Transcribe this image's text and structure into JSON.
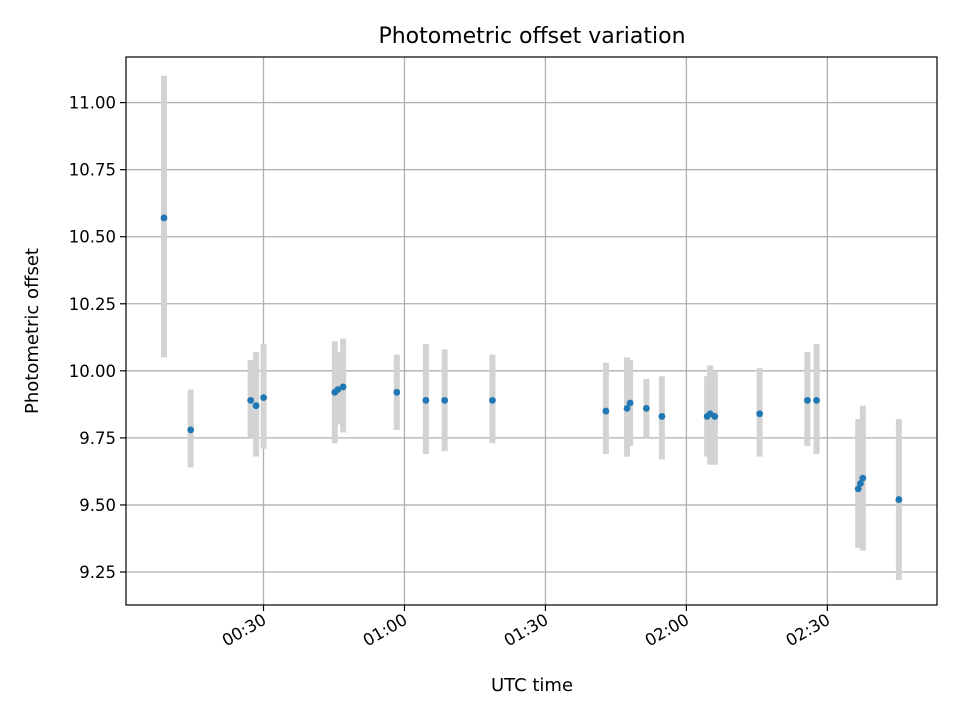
{
  "chart_data": {
    "type": "scatter",
    "title": "Photometric offset variation",
    "xlabel": "UTC time",
    "ylabel": "Photometric offset",
    "xlim": [
      "00:00:44",
      "02:53:20"
    ],
    "ylim": [
      9.127,
      11.17
    ],
    "grid": true,
    "legend": "none",
    "x_ticks": [
      {
        "value": "00:30",
        "label": "00:30"
      },
      {
        "value": "01:00",
        "label": "01:00"
      },
      {
        "value": "01:30",
        "label": "01:30"
      },
      {
        "value": "02:00",
        "label": "02:00"
      },
      {
        "value": "02:30",
        "label": "02:30"
      }
    ],
    "y_ticks": [
      {
        "value": 9.25,
        "label": "9.25"
      },
      {
        "value": 9.5,
        "label": "9.50"
      },
      {
        "value": 9.75,
        "label": "9.75"
      },
      {
        "value": 10.0,
        "label": "10.00"
      },
      {
        "value": 10.25,
        "label": "10.25"
      },
      {
        "value": 10.5,
        "label": "10.50"
      },
      {
        "value": 10.75,
        "label": "10.75"
      },
      {
        "value": 11.0,
        "label": "11.00"
      }
    ],
    "colors": {
      "point": "#1f77b4",
      "errorbar": "#d3d3d3",
      "grid": "#b0b0b0"
    },
    "series": [
      {
        "points": [
          {
            "x": "00:08:49",
            "y": 10.57,
            "ylo": 10.05,
            "yhi": 11.1
          },
          {
            "x": "00:14:30",
            "y": 9.78,
            "ylo": 9.64,
            "yhi": 9.93
          },
          {
            "x": "00:27:16",
            "y": 9.89,
            "ylo": 9.75,
            "yhi": 10.04
          },
          {
            "x": "00:28:25",
            "y": 9.87,
            "ylo": 9.68,
            "yhi": 10.07
          },
          {
            "x": "00:30:01",
            "y": 9.9,
            "ylo": 9.71,
            "yhi": 10.1
          },
          {
            "x": "00:45:10",
            "y": 9.92,
            "ylo": 9.73,
            "yhi": 10.11
          },
          {
            "x": "00:45:49",
            "y": 9.93,
            "ylo": 9.8,
            "yhi": 10.07
          },
          {
            "x": "00:46:57",
            "y": 9.94,
            "ylo": 9.77,
            "yhi": 10.12
          },
          {
            "x": "00:58:22",
            "y": 9.92,
            "ylo": 9.78,
            "yhi": 10.06
          },
          {
            "x": "01:04:33",
            "y": 9.89,
            "ylo": 9.69,
            "yhi": 10.1
          },
          {
            "x": "01:08:33",
            "y": 9.89,
            "ylo": 9.7,
            "yhi": 10.08
          },
          {
            "x": "01:18:43",
            "y": 9.89,
            "ylo": 9.73,
            "yhi": 10.06
          },
          {
            "x": "01:42:52",
            "y": 9.85,
            "ylo": 9.69,
            "yhi": 10.03
          },
          {
            "x": "01:47:22",
            "y": 9.86,
            "ylo": 9.68,
            "yhi": 10.05
          },
          {
            "x": "01:48:01",
            "y": 9.88,
            "ylo": 9.72,
            "yhi": 10.04
          },
          {
            "x": "01:51:29",
            "y": 9.86,
            "ylo": 9.75,
            "yhi": 9.97
          },
          {
            "x": "01:54:47",
            "y": 9.83,
            "ylo": 9.67,
            "yhi": 9.98
          },
          {
            "x": "02:04:25",
            "y": 9.83,
            "ylo": 9.68,
            "yhi": 9.98
          },
          {
            "x": "02:05:04",
            "y": 9.84,
            "ylo": 9.65,
            "yhi": 10.02
          },
          {
            "x": "02:06:03",
            "y": 9.83,
            "ylo": 9.65,
            "yhi": 10.0
          },
          {
            "x": "02:15:35",
            "y": 9.84,
            "ylo": 9.68,
            "yhi": 10.01
          },
          {
            "x": "02:25:45",
            "y": 9.89,
            "ylo": 9.72,
            "yhi": 10.07
          },
          {
            "x": "02:27:42",
            "y": 9.89,
            "ylo": 9.69,
            "yhi": 10.1
          },
          {
            "x": "02:36:34",
            "y": 9.56,
            "ylo": 9.34,
            "yhi": 9.82
          },
          {
            "x": "02:37:03",
            "y": 9.58,
            "ylo": 9.36,
            "yhi": 9.8
          },
          {
            "x": "02:37:33",
            "y": 9.6,
            "ylo": 9.33,
            "yhi": 9.87
          },
          {
            "x": "02:45:13",
            "y": 9.52,
            "ylo": 9.22,
            "yhi": 9.82
          }
        ]
      }
    ]
  }
}
